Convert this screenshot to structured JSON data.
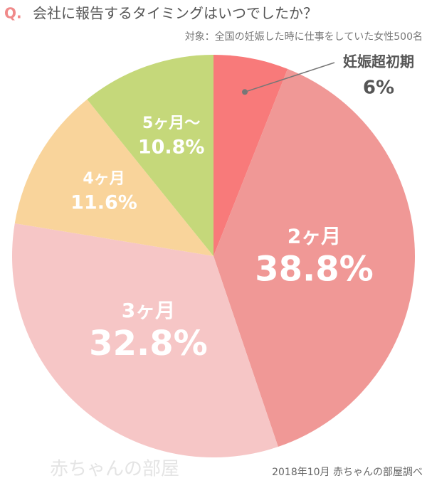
{
  "chart_data": {
    "type": "pie",
    "question_label": "Q.",
    "title": "会社に報告するタイミングはいつでしたか？",
    "subtitle": "対象：全国の妊娠した時に仕事をしていた女性500名",
    "categories": [
      "妊娠超初期",
      "2ヶ月",
      "3ヶ月",
      "4ヶ月",
      "5ヶ月〜"
    ],
    "values": [
      6,
      38.8,
      32.8,
      11.6,
      10.8
    ],
    "value_labels": [
      "6%",
      "38.8%",
      "32.8%",
      "11.6%",
      "10.8%"
    ],
    "colors": [
      "#f87a7a",
      "#f09896",
      "#f6c6c6",
      "#f9d49b",
      "#c5d87a"
    ],
    "source": "2018年10月 赤ちゃんの部屋調べ",
    "logo": "赤ちゃんの部屋"
  }
}
